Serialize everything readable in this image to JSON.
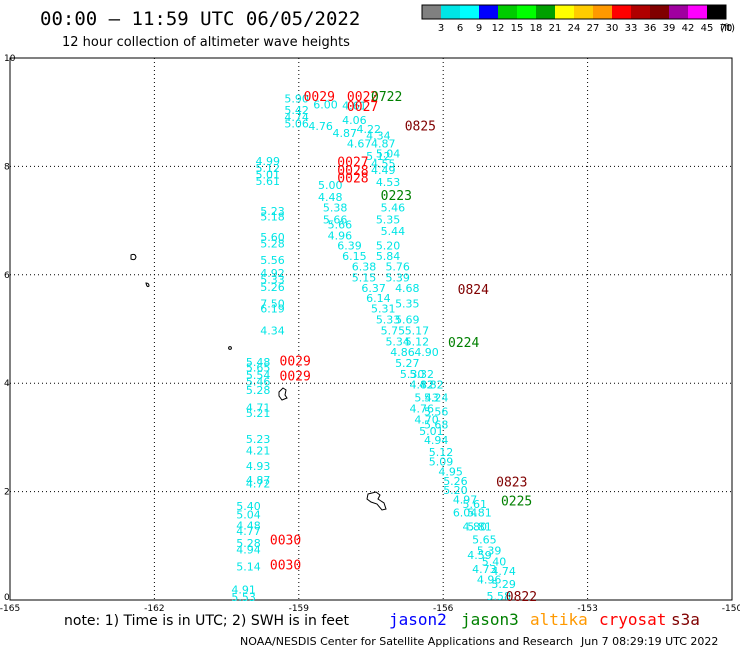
{
  "title": "00:00 – 11:59 UTC 06/05/2022",
  "subtitle": "12 hour collection of altimeter wave heights",
  "legend": {
    "colors": [
      "#808080",
      "#00e5e5",
      "#00ffff",
      "#0000ff",
      "#00cc00",
      "#00ff00",
      "#00a000",
      "#ffff00",
      "#ffcc00",
      "#ff9900",
      "#ff0000",
      "#b00000",
      "#800000",
      "#a000a0",
      "#ff00ff",
      "#000000"
    ],
    "labels": [
      "3",
      "6",
      "9",
      "12",
      "15",
      "18",
      "21",
      "24",
      "27",
      "30",
      "33",
      "36",
      "39",
      "42",
      "45",
      "70",
      "(ft)"
    ]
  },
  "axes": {
    "x_ticks": [
      {
        "lon": -165,
        "label": "-165"
      },
      {
        "lon": -162,
        "label": "-162"
      },
      {
        "lon": -159,
        "label": "-159"
      },
      {
        "lon": -156,
        "label": "-156"
      },
      {
        "lon": -153,
        "label": "-153"
      },
      {
        "lon": -150,
        "label": "-150"
      }
    ],
    "y_ticks": [
      {
        "lat": 0,
        "label": "0"
      },
      {
        "lat": 2,
        "label": "2"
      },
      {
        "lat": 4,
        "label": "4"
      },
      {
        "lat": 6,
        "label": "6"
      },
      {
        "lat": 8,
        "label": "8"
      },
      {
        "lat": 10,
        "label": "10"
      }
    ],
    "xlim": [
      -165,
      -150
    ],
    "ylim": [
      0,
      10
    ],
    "grid": true
  },
  "note": "note: 1) Time is in UTC; 2) SWH is in feet",
  "satellites": [
    {
      "name": "jason2",
      "color": "#0000ff"
    },
    {
      "name": "jason3",
      "color": "#008000"
    },
    {
      "name": "altika",
      "color": "#ff9900"
    },
    {
      "name": "cryosat",
      "color": "#ff0000"
    },
    {
      "name": "s3a",
      "color": "#800000"
    }
  ],
  "footer": "NOAA/NESDIS Center for Satellite Applications and Research",
  "timestamp": "Jun  7 08:29:19 UTC 2022",
  "chart_data": {
    "type": "scatter",
    "title": "00:00 – 11:59 UTC 06/05/2022",
    "subtitle": "12 hour collection of altimeter wave heights",
    "xlim": [
      -165,
      -150
    ],
    "ylim": [
      0,
      10
    ],
    "swh_points": [
      {
        "lon": -159.3,
        "lat": 9.18,
        "v": "5.90"
      },
      {
        "lon": -158.7,
        "lat": 9.07,
        "v": "6.00"
      },
      {
        "lon": -159.3,
        "lat": 8.97,
        "v": "5.42"
      },
      {
        "lon": -159.3,
        "lat": 8.84,
        "v": "4.74"
      },
      {
        "lon": -159.3,
        "lat": 8.72,
        "v": "5.06"
      },
      {
        "lon": -158.8,
        "lat": 8.67,
        "v": "4.76"
      },
      {
        "lon": -158.1,
        "lat": 9.05,
        "v": "4.61"
      },
      {
        "lon": -158.1,
        "lat": 8.78,
        "v": "4.06"
      },
      {
        "lon": -158.3,
        "lat": 8.54,
        "v": "4.87"
      },
      {
        "lon": -158.0,
        "lat": 8.35,
        "v": "4.67"
      },
      {
        "lon": -157.6,
        "lat": 8.12,
        "v": "5.12"
      },
      {
        "lon": -157.8,
        "lat": 8.62,
        "v": "4.22"
      },
      {
        "lon": -157.6,
        "lat": 8.5,
        "v": "4.34"
      },
      {
        "lon": -157.5,
        "lat": 8.35,
        "v": "4.87"
      },
      {
        "lon": -157.4,
        "lat": 8.16,
        "v": "5.04"
      },
      {
        "lon": -157.5,
        "lat": 7.98,
        "v": "4.55"
      },
      {
        "lon": -157.5,
        "lat": 7.86,
        "v": "4.49"
      },
      {
        "lon": -157.4,
        "lat": 7.64,
        "v": "4.53"
      },
      {
        "lon": -159.9,
        "lat": 8.03,
        "v": "4.99"
      },
      {
        "lon": -159.9,
        "lat": 7.9,
        "v": "5.12"
      },
      {
        "lon": -159.9,
        "lat": 7.78,
        "v": "5.01"
      },
      {
        "lon": -159.9,
        "lat": 7.66,
        "v": "5.61"
      },
      {
        "lon": -158.6,
        "lat": 7.58,
        "v": "5.00"
      },
      {
        "lon": -158.6,
        "lat": 7.36,
        "v": "4.48"
      },
      {
        "lon": -158.5,
        "lat": 7.17,
        "v": "5.38"
      },
      {
        "lon": -158.5,
        "lat": 6.95,
        "v": "5.66"
      },
      {
        "lon": -158.4,
        "lat": 6.85,
        "v": "5.66"
      },
      {
        "lon": -157.3,
        "lat": 7.17,
        "v": "5.46"
      },
      {
        "lon": -157.4,
        "lat": 6.95,
        "v": "5.35"
      },
      {
        "lon": -157.3,
        "lat": 6.73,
        "v": "5.44"
      },
      {
        "lon": -158.4,
        "lat": 6.65,
        "v": "4.96"
      },
      {
        "lon": -158.2,
        "lat": 6.47,
        "v": "6.39"
      },
      {
        "lon": -157.4,
        "lat": 6.47,
        "v": "5.20"
      },
      {
        "lon": -158.1,
        "lat": 6.27,
        "v": "6.15"
      },
      {
        "lon": -157.4,
        "lat": 6.27,
        "v": "5.84"
      },
      {
        "lon": -157.9,
        "lat": 6.08,
        "v": "6.38"
      },
      {
        "lon": -157.2,
        "lat": 6.08,
        "v": "5.76"
      },
      {
        "lon": -157.9,
        "lat": 5.88,
        "v": "5.15"
      },
      {
        "lon": -157.2,
        "lat": 5.88,
        "v": "5.39"
      },
      {
        "lon": -157.7,
        "lat": 5.68,
        "v": "6.37"
      },
      {
        "lon": -157.0,
        "lat": 5.68,
        "v": "4.68"
      },
      {
        "lon": -157.6,
        "lat": 5.5,
        "v": "6.14"
      },
      {
        "lon": -157.0,
        "lat": 5.4,
        "v": "5.35"
      },
      {
        "lon": -157.5,
        "lat": 5.3,
        "v": "5.31"
      },
      {
        "lon": -157.4,
        "lat": 5.1,
        "v": "5.33"
      },
      {
        "lon": -157.0,
        "lat": 5.1,
        "v": "5.69"
      },
      {
        "lon": -157.3,
        "lat": 4.9,
        "v": "5.75"
      },
      {
        "lon": -156.8,
        "lat": 4.9,
        "v": "5.17"
      },
      {
        "lon": -157.2,
        "lat": 4.7,
        "v": "5.34"
      },
      {
        "lon": -156.8,
        "lat": 4.7,
        "v": "5.12"
      },
      {
        "lon": -157.1,
        "lat": 4.5,
        "v": "4.86"
      },
      {
        "lon": -156.6,
        "lat": 4.5,
        "v": "4.90"
      },
      {
        "lon": -157.0,
        "lat": 4.3,
        "v": "5.27"
      },
      {
        "lon": -156.7,
        "lat": 4.1,
        "v": "5.32"
      },
      {
        "lon": -156.9,
        "lat": 4.1,
        "v": "5.30"
      },
      {
        "lon": -156.7,
        "lat": 3.9,
        "v": "4.82"
      },
      {
        "lon": -156.5,
        "lat": 3.9,
        "v": "4.82"
      },
      {
        "lon": -156.6,
        "lat": 3.66,
        "v": "5.43"
      },
      {
        "lon": -156.4,
        "lat": 3.66,
        "v": "5.24"
      },
      {
        "lon": -156.7,
        "lat": 3.46,
        "v": "4.76"
      },
      {
        "lon": -156.4,
        "lat": 3.4,
        "v": "5.56"
      },
      {
        "lon": -156.6,
        "lat": 3.26,
        "v": "4.70"
      },
      {
        "lon": -156.4,
        "lat": 3.16,
        "v": "5.68"
      },
      {
        "lon": -156.5,
        "lat": 3.04,
        "v": "5.01"
      },
      {
        "lon": -156.4,
        "lat": 2.88,
        "v": "4.94"
      },
      {
        "lon": -156.3,
        "lat": 2.66,
        "v": "5.12"
      },
      {
        "lon": -156.3,
        "lat": 2.48,
        "v": "5.09"
      },
      {
        "lon": -156.1,
        "lat": 2.3,
        "v": "4.95"
      },
      {
        "lon": -156.0,
        "lat": 2.12,
        "v": "5.26"
      },
      {
        "lon": -156.0,
        "lat": 1.96,
        "v": "5.20"
      },
      {
        "lon": -155.8,
        "lat": 1.78,
        "v": "4.97"
      },
      {
        "lon": -155.6,
        "lat": 1.7,
        "v": "5.61"
      },
      {
        "lon": -155.8,
        "lat": 1.54,
        "v": "6.04"
      },
      {
        "lon": -155.5,
        "lat": 1.54,
        "v": "5.81"
      },
      {
        "lon": -155.6,
        "lat": 1.28,
        "v": "4.80"
      },
      {
        "lon": -155.5,
        "lat": 1.28,
        "v": "5.81"
      },
      {
        "lon": -155.4,
        "lat": 1.04,
        "v": "5.65"
      },
      {
        "lon": -155.3,
        "lat": 0.84,
        "v": "5.39"
      },
      {
        "lon": -155.5,
        "lat": 0.76,
        "v": "4.59"
      },
      {
        "lon": -155.2,
        "lat": 0.64,
        "v": "5.40"
      },
      {
        "lon": -155.4,
        "lat": 0.5,
        "v": "4.73"
      },
      {
        "lon": -155.0,
        "lat": 0.46,
        "v": "4.74"
      },
      {
        "lon": -155.3,
        "lat": 0.3,
        "v": "4.96"
      },
      {
        "lon": -155.0,
        "lat": 0.22,
        "v": "5.29"
      },
      {
        "lon": -155.1,
        "lat": 0.0,
        "v": "5.58"
      },
      {
        "lon": -159.8,
        "lat": 7.1,
        "v": "5.23"
      },
      {
        "lon": -159.8,
        "lat": 7.0,
        "v": "5.18"
      },
      {
        "lon": -159.8,
        "lat": 6.62,
        "v": "5.60"
      },
      {
        "lon": -159.8,
        "lat": 6.5,
        "v": "5.28"
      },
      {
        "lon": -159.8,
        "lat": 6.2,
        "v": "5.56"
      },
      {
        "lon": -159.8,
        "lat": 5.96,
        "v": "4.92"
      },
      {
        "lon": -159.8,
        "lat": 5.84,
        "v": "5.33"
      },
      {
        "lon": -159.8,
        "lat": 5.7,
        "v": "5.26"
      },
      {
        "lon": -159.8,
        "lat": 5.4,
        "v": "7.50"
      },
      {
        "lon": -159.8,
        "lat": 5.3,
        "v": "6.19"
      },
      {
        "lon": -159.8,
        "lat": 4.9,
        "v": "4.34"
      },
      {
        "lon": -160.1,
        "lat": 4.32,
        "v": "5.48"
      },
      {
        "lon": -160.1,
        "lat": 4.22,
        "v": "5.65"
      },
      {
        "lon": -160.1,
        "lat": 4.08,
        "v": "5.54"
      },
      {
        "lon": -160.1,
        "lat": 3.96,
        "v": "5.46"
      },
      {
        "lon": -160.1,
        "lat": 3.8,
        "v": "5.28"
      },
      {
        "lon": -160.1,
        "lat": 3.48,
        "v": "4.71"
      },
      {
        "lon": -160.1,
        "lat": 3.38,
        "v": "5.21"
      },
      {
        "lon": -160.1,
        "lat": 2.9,
        "v": "5.23"
      },
      {
        "lon": -160.1,
        "lat": 2.68,
        "v": "4.21"
      },
      {
        "lon": -160.1,
        "lat": 2.4,
        "v": "4.93"
      },
      {
        "lon": -160.1,
        "lat": 2.14,
        "v": "4.87"
      },
      {
        "lon": -160.1,
        "lat": 2.08,
        "v": "4.72"
      },
      {
        "lon": -160.3,
        "lat": 1.66,
        "v": "5.40"
      },
      {
        "lon": -160.3,
        "lat": 1.5,
        "v": "5.04"
      },
      {
        "lon": -160.3,
        "lat": 1.3,
        "v": "4.48"
      },
      {
        "lon": -160.3,
        "lat": 1.2,
        "v": "4.77"
      },
      {
        "lon": -160.3,
        "lat": 0.98,
        "v": "5.28"
      },
      {
        "lon": -160.3,
        "lat": 0.86,
        "v": "4.94"
      },
      {
        "lon": -160.3,
        "lat": 0.54,
        "v": "5.14"
      },
      {
        "lon": -160.4,
        "lat": 0.12,
        "v": "4.91"
      },
      {
        "lon": -160.4,
        "lat": -0.02,
        "v": "5.53"
      }
    ],
    "time_labels": [
      {
        "lon": -158.0,
        "lat": 9.21,
        "v": "0022",
        "sat": "cryosat"
      },
      {
        "lon": -158.9,
        "lat": 9.21,
        "v": "0029",
        "sat": "cryosat"
      },
      {
        "lon": -158.0,
        "lat": 9.02,
        "v": "0027",
        "sat": "cryosat"
      },
      {
        "lon": -157.5,
        "lat": 9.21,
        "v": "0722",
        "sat": "jason3"
      },
      {
        "lon": -156.8,
        "lat": 8.66,
        "v": "0825",
        "sat": "s3a"
      },
      {
        "lon": -158.2,
        "lat": 8.0,
        "v": "0027",
        "sat": "cryosat"
      },
      {
        "lon": -158.2,
        "lat": 7.84,
        "v": "0028",
        "sat": "cryosat"
      },
      {
        "lon": -158.2,
        "lat": 7.7,
        "v": "0028",
        "sat": "cryosat"
      },
      {
        "lon": -157.3,
        "lat": 7.38,
        "v": "0223",
        "sat": "jason3"
      },
      {
        "lon": -155.7,
        "lat": 5.65,
        "v": "0824",
        "sat": "s3a"
      },
      {
        "lon": -155.9,
        "lat": 4.67,
        "v": "0224",
        "sat": "jason3"
      },
      {
        "lon": -159.4,
        "lat": 4.33,
        "v": "0029",
        "sat": "cryosat"
      },
      {
        "lon": -159.4,
        "lat": 4.05,
        "v": "0029",
        "sat": "cryosat"
      },
      {
        "lon": -154.9,
        "lat": 2.09,
        "v": "0823",
        "sat": "s3a"
      },
      {
        "lon": -154.8,
        "lat": 1.74,
        "v": "0225",
        "sat": "jason3"
      },
      {
        "lon": -159.6,
        "lat": 1.02,
        "v": "0030",
        "sat": "cryosat"
      },
      {
        "lon": -159.6,
        "lat": 0.56,
        "v": "0030",
        "sat": "cryosat"
      },
      {
        "lon": -154.7,
        "lat": -0.02,
        "v": "0822",
        "sat": "s3a"
      }
    ]
  }
}
